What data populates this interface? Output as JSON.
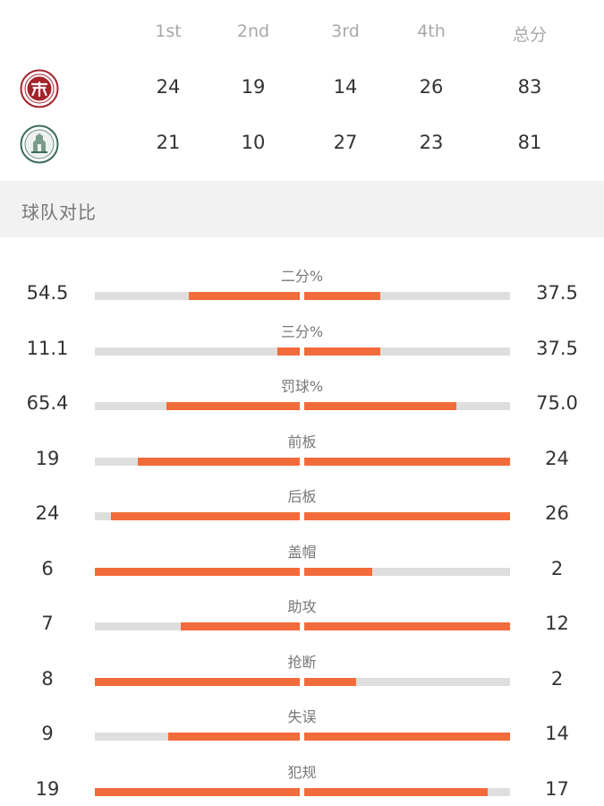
{
  "score_table": {
    "headers": [
      "1st",
      "2nd",
      "3rd",
      "4th",
      "总分"
    ],
    "teams": [
      {
        "logo_icon": "peking-university-crest-icon",
        "quarters": [
          "24",
          "19",
          "14",
          "26"
        ],
        "total": "83"
      },
      {
        "logo_icon": "university-building-crest-icon",
        "quarters": [
          "21",
          "10",
          "27",
          "23"
        ],
        "total": "81"
      }
    ]
  },
  "section": {
    "title": "球队对比"
  },
  "stats": [
    {
      "label": "二分%",
      "left": "54.5",
      "right": "37.5",
      "left_fill": 0.54,
      "right_fill": 0.37
    },
    {
      "label": "三分%",
      "left": "11.1",
      "right": "37.5",
      "left_fill": 0.11,
      "right_fill": 0.37
    },
    {
      "label": "罚球%",
      "left": "65.4",
      "right": "75.0",
      "left_fill": 0.65,
      "right_fill": 0.74
    },
    {
      "label": "前板",
      "left": "19",
      "right": "24",
      "left_fill": 0.79,
      "right_fill": 1.0
    },
    {
      "label": "后板",
      "left": "24",
      "right": "26",
      "left_fill": 0.92,
      "right_fill": 1.0
    },
    {
      "label": "盖帽",
      "left": "6",
      "right": "2",
      "left_fill": 1.0,
      "right_fill": 0.33
    },
    {
      "label": "助攻",
      "left": "7",
      "right": "12",
      "left_fill": 0.58,
      "right_fill": 1.0
    },
    {
      "label": "抢断",
      "left": "8",
      "right": "2",
      "left_fill": 1.0,
      "right_fill": 0.25
    },
    {
      "label": "失误",
      "left": "9",
      "right": "14",
      "left_fill": 0.64,
      "right_fill": 1.0
    },
    {
      "label": "犯规",
      "left": "19",
      "right": "17",
      "left_fill": 1.0,
      "right_fill": 0.89
    }
  ],
  "colors": {
    "accent": "#f26b3a",
    "track": "#dedede",
    "section_bg": "#f2f2f2",
    "team1_crest": "#a4232b",
    "team2_crest": "#3c6b5a"
  }
}
